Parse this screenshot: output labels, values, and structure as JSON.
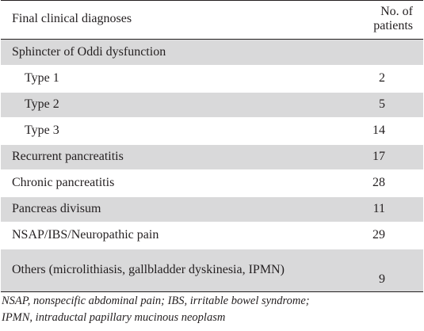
{
  "table": {
    "headers": {
      "diagnosis": "Final clinical diagnoses",
      "patients": "No. of patients"
    },
    "rows": [
      {
        "diagnosis": "Sphincter of Oddi dysfunction",
        "patients": ""
      },
      {
        "diagnosis": "Type 1",
        "patients": "2"
      },
      {
        "diagnosis": "Type 2",
        "patients": "5"
      },
      {
        "diagnosis": "Type 3",
        "patients": "14"
      },
      {
        "diagnosis": "Recurrent pancreatitis",
        "patients": "17"
      },
      {
        "diagnosis": "Chronic pancreatitis",
        "patients": "28"
      },
      {
        "diagnosis": "Pancreas divisum",
        "patients": "11"
      },
      {
        "diagnosis": "NSAP/IBS/Neuropathic pain",
        "patients": "29"
      },
      {
        "diagnosis": "Others (microlithiasis, gallbladder dyskinesia, IPMN)",
        "patients": "9"
      }
    ],
    "footnote_line1": "NSAP, nonspecific abdominal pain; IBS, irritable bowel syndrome;",
    "footnote_line2": "IPMN, intraductal papillary mucinous neoplasm",
    "row_shading_color": "#d9d9da"
  }
}
